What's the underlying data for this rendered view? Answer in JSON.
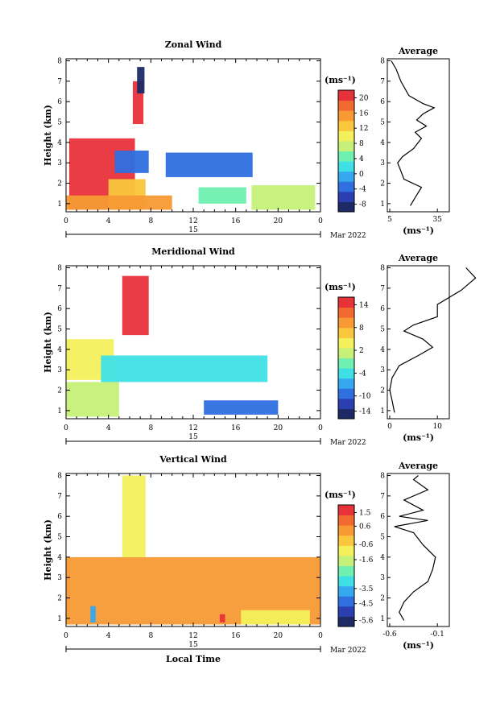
{
  "panels": [
    {
      "title": "Zonal Wind",
      "ylabel": "Height (km)",
      "unit_label": "(ms⁻¹)",
      "avg_title": "Average",
      "avg_xlabel": "(ms⁻¹)",
      "avg_xticks": [
        "5",
        "35"
      ],
      "colorbar_ticks": [
        "20",
        "16",
        "12",
        "8",
        "4",
        "0",
        "-4",
        "-8"
      ],
      "colorbar_min": -10,
      "colorbar_max": 22
    },
    {
      "title": "Meridional Wind",
      "ylabel": "Height (km)",
      "unit_label": "(ms⁻¹)",
      "avg_title": "Average",
      "avg_xlabel": "(ms⁻¹)",
      "avg_xticks": [
        "0",
        "10"
      ],
      "colorbar_ticks": [
        "14",
        "8",
        "2",
        "-4",
        "-10",
        "-14"
      ],
      "colorbar_min": -16,
      "colorbar_max": 16
    },
    {
      "title": "Vertical Wind",
      "ylabel": "Height (km)",
      "unit_label": "(ms⁻¹)",
      "avg_title": "Average",
      "avg_xlabel": "(ms⁻¹)",
      "avg_xticks": [
        "-0.6",
        "-0.1"
      ],
      "colorbar_ticks": [
        "1.5",
        "0.6",
        "-0.6",
        "-1.6",
        "-3.5",
        "-4.5",
        "-5.6"
      ],
      "colorbar_min": -6,
      "colorbar_max": 2
    }
  ],
  "xticks": [
    "0",
    "4",
    "8",
    "12",
    "16",
    "20",
    "0"
  ],
  "yticks": [
    "1",
    "2",
    "3",
    "4",
    "5",
    "6",
    "7",
    "8"
  ],
  "day_label": "15",
  "month_label": "Mar 2022",
  "xlabel": "Local Time",
  "chart_data": [
    {
      "type": "heatmap",
      "title": "Zonal Wind",
      "xlabel": "",
      "ylabel": "Height (km)",
      "xlim": [
        0,
        24
      ],
      "ylim": [
        0.6,
        8.1
      ],
      "colorbar_unit": "(ms⁻¹)",
      "regions": [
        {
          "x0": 0.3,
          "x1": 6.5,
          "y0": 0.7,
          "y1": 4.2,
          "value": 20
        },
        {
          "x0": 4.0,
          "x1": 7.5,
          "y0": 0.7,
          "y1": 2.2,
          "value": 12
        },
        {
          "x0": 0.0,
          "x1": 10.0,
          "y0": 0.7,
          "y1": 1.4,
          "value": 14
        },
        {
          "x0": 6.3,
          "x1": 7.3,
          "y0": 4.9,
          "y1": 7.0,
          "value": 20
        },
        {
          "x0": 6.7,
          "x1": 7.4,
          "y0": 6.4,
          "y1": 7.7,
          "value": -8
        },
        {
          "x0": 4.6,
          "x1": 7.8,
          "y0": 2.5,
          "y1": 3.6,
          "value": -4
        },
        {
          "x0": 9.4,
          "x1": 17.6,
          "y0": 2.3,
          "y1": 3.5,
          "value": -4
        },
        {
          "x0": 12.5,
          "x1": 17.0,
          "y0": 1.0,
          "y1": 1.8,
          "value": 4
        },
        {
          "x0": 17.5,
          "x1": 23.5,
          "y0": 0.7,
          "y1": 1.9,
          "value": 8
        }
      ],
      "average_profile": {
        "height": [
          0.9,
          1.3,
          1.8,
          2.2,
          2.6,
          3.0,
          3.3,
          3.7,
          4.2,
          4.5,
          4.8,
          5.1,
          5.4,
          5.7,
          5.9,
          6.3,
          7.0,
          7.6,
          8.0
        ],
        "value": [
          18,
          21,
          25,
          14,
          12,
          10,
          13,
          20,
          25,
          21,
          28,
          22,
          26,
          33,
          26,
          17,
          12,
          9,
          6
        ]
      }
    },
    {
      "type": "heatmap",
      "title": "Meridional Wind",
      "xlabel": "",
      "ylabel": "Height (km)",
      "xlim": [
        0,
        24
      ],
      "ylim": [
        0.6,
        8.1
      ],
      "colorbar_unit": "(ms⁻¹)",
      "regions": [
        {
          "x0": 5.3,
          "x1": 7.8,
          "y0": 4.7,
          "y1": 7.6,
          "value": 14
        },
        {
          "x0": 0.0,
          "x1": 4.5,
          "y0": 2.5,
          "y1": 4.5,
          "value": 4
        },
        {
          "x0": 0.0,
          "x1": 5.0,
          "y0": 0.7,
          "y1": 2.4,
          "value": 2
        },
        {
          "x0": 3.3,
          "x1": 19.0,
          "y0": 2.4,
          "y1": 3.7,
          "value": -4
        },
        {
          "x0": 13.0,
          "x1": 20.0,
          "y0": 0.8,
          "y1": 1.5,
          "value": -10
        }
      ],
      "average_profile": {
        "height": [
          0.9,
          1.5,
          2.0,
          2.6,
          3.2,
          3.7,
          4.1,
          4.5,
          4.9,
          5.2,
          5.6,
          6.2,
          6.9,
          7.5,
          8.0
        ],
        "value": [
          1,
          0.5,
          0,
          0.5,
          2,
          6,
          9,
          7,
          3,
          5,
          10,
          10,
          15,
          18,
          16
        ]
      }
    },
    {
      "type": "heatmap",
      "title": "Vertical Wind",
      "xlabel": "Local Time",
      "ylabel": "Height (km)",
      "xlim": [
        0,
        24
      ],
      "ylim": [
        0.6,
        8.1
      ],
      "colorbar_unit": "(ms⁻¹)",
      "regions": [
        {
          "x0": 0.0,
          "x1": 24.0,
          "y0": 0.7,
          "y1": 4.0,
          "value": 0.3
        },
        {
          "x0": 5.3,
          "x1": 7.5,
          "y0": 4.0,
          "y1": 8.0,
          "value": -1.2
        },
        {
          "x0": 2.3,
          "x1": 2.8,
          "y0": 0.8,
          "y1": 1.6,
          "value": -3.5
        },
        {
          "x0": 14.5,
          "x1": 15.0,
          "y0": 0.8,
          "y1": 1.2,
          "value": 1.5
        },
        {
          "x0": 16.5,
          "x1": 23.0,
          "y0": 0.7,
          "y1": 1.4,
          "value": -0.8
        }
      ],
      "average_profile": {
        "height": [
          0.9,
          1.3,
          1.8,
          2.3,
          2.8,
          3.4,
          4.0,
          4.6,
          5.2,
          5.5,
          5.8,
          6.0,
          6.3,
          6.8,
          7.3,
          7.8,
          8.0
        ],
        "value": [
          -0.45,
          -0.5,
          -0.45,
          -0.35,
          -0.2,
          -0.15,
          -0.12,
          -0.25,
          -0.35,
          -0.55,
          -0.2,
          -0.5,
          -0.25,
          -0.45,
          -0.2,
          -0.35,
          -0.3
        ]
      }
    }
  ]
}
